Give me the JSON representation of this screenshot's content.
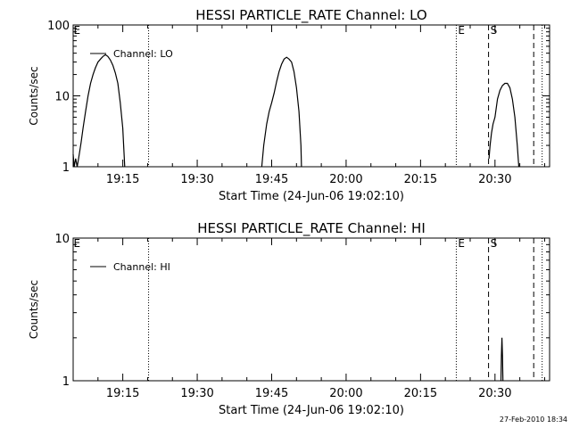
{
  "chart_data": [
    {
      "type": "line",
      "title": "HESSI PARTICLE_RATE Channel: LO",
      "xlabel": "Start Time (24-Jun-06 19:02:10)",
      "ylabel": "Counts/sec",
      "y_scale": "log",
      "ylim": [
        1,
        100
      ],
      "xlim_minutes": [
        5,
        44
      ],
      "x_ticks": [
        {
          "label": "19:15",
          "minute": 15
        },
        {
          "label": "19:30",
          "minute": 30
        },
        {
          "label": "19:45",
          "minute": 45
        },
        {
          "label": "20:00",
          "minute": 60
        },
        {
          "label": "20:15",
          "minute": 75
        },
        {
          "label": "20:30",
          "minute": 90
        }
      ],
      "y_ticks": [
        {
          "label": "1",
          "value": 1
        },
        {
          "label": "10",
          "value": 10
        },
        {
          "label": "100",
          "value": 100
        }
      ],
      "legend": {
        "label": "Channel: LO",
        "position": "top-left"
      },
      "markers": [
        {
          "text": "E",
          "minute": 5.1,
          "style": "none"
        },
        {
          "text": "",
          "minute": 20.2,
          "style": "dotted"
        },
        {
          "text": "E",
          "minute": 82.2,
          "style": "dotted"
        },
        {
          "text": "S",
          "minute": 88.7,
          "style": "dashed"
        },
        {
          "text": "",
          "minute": 97.8,
          "style": "dashed"
        },
        {
          "text": "",
          "minute": 99.5,
          "style": "dotted"
        }
      ],
      "series": [
        {
          "name": "Channel: LO",
          "segments": [
            [
              [
                5.0,
                1.5
              ],
              [
                5.2,
                1.0
              ],
              [
                5.5,
                1.3
              ],
              [
                5.8,
                1.0
              ],
              [
                6.0,
                1.2
              ],
              [
                6.3,
                1.6
              ],
              [
                6.6,
                2.2
              ],
              [
                7.0,
                3.5
              ],
              [
                7.5,
                6.0
              ],
              [
                8.0,
                10.0
              ],
              [
                8.5,
                15.0
              ],
              [
                9.0,
                20.0
              ],
              [
                9.5,
                25.0
              ],
              [
                10.0,
                30.0
              ],
              [
                10.5,
                33.0
              ],
              [
                11.0,
                36.0
              ],
              [
                11.5,
                38.0
              ],
              [
                12.0,
                36.0
              ],
              [
                12.5,
                32.0
              ],
              [
                13.0,
                27.0
              ],
              [
                13.5,
                21.0
              ],
              [
                14.0,
                15.0
              ],
              [
                14.5,
                8.0
              ],
              [
                15.0,
                3.5
              ],
              [
                15.4,
                1.0
              ]
            ],
            [
              [
                43.0,
                1.0
              ],
              [
                43.4,
                2.0
              ],
              [
                44.0,
                4.0
              ],
              [
                44.5,
                6.0
              ],
              [
                45.0,
                8.0
              ],
              [
                45.5,
                11.0
              ],
              [
                46.0,
                16.0
              ],
              [
                46.5,
                22.0
              ],
              [
                47.0,
                28.0
              ],
              [
                47.5,
                33.0
              ],
              [
                48.0,
                35.0
              ],
              [
                48.5,
                33.0
              ],
              [
                49.0,
                30.0
              ],
              [
                49.5,
                22.0
              ],
              [
                50.0,
                13.0
              ],
              [
                50.5,
                6.0
              ],
              [
                50.9,
                2.0
              ],
              [
                51.0,
                1.0
              ]
            ],
            [
              [
                88.8,
                1.3
              ],
              [
                89.0,
                2.0
              ],
              [
                89.3,
                3.0
              ],
              [
                89.6,
                4.0
              ],
              [
                90.0,
                5.0
              ],
              [
                90.5,
                9.0
              ],
              [
                91.0,
                12.0
              ],
              [
                91.5,
                14.0
              ],
              [
                92.0,
                15.0
              ],
              [
                92.5,
                15.0
              ],
              [
                93.0,
                13.0
              ],
              [
                93.5,
                9.0
              ],
              [
                94.0,
                5.0
              ],
              [
                94.5,
                2.0
              ],
              [
                94.8,
                1.0
              ]
            ]
          ]
        }
      ]
    },
    {
      "type": "line",
      "title": "HESSI PARTICLE_RATE Channel: HI",
      "xlabel": "Start Time (24-Jun-06 19:02:10)",
      "ylabel": "Counts/sec",
      "y_scale": "log",
      "ylim": [
        1,
        10
      ],
      "xlim_minutes": [
        5,
        44
      ],
      "x_ticks": [
        {
          "label": "19:15",
          "minute": 15
        },
        {
          "label": "19:30",
          "minute": 30
        },
        {
          "label": "19:45",
          "minute": 45
        },
        {
          "label": "20:00",
          "minute": 60
        },
        {
          "label": "20:15",
          "minute": 75
        },
        {
          "label": "20:30",
          "minute": 90
        }
      ],
      "y_ticks": [
        {
          "label": "1",
          "value": 1
        },
        {
          "label": "10",
          "value": 10
        }
      ],
      "legend": {
        "label": "Channel: HI",
        "position": "top-left"
      },
      "markers": [
        {
          "text": "E",
          "minute": 5.1,
          "style": "none"
        },
        {
          "text": "",
          "minute": 20.2,
          "style": "dotted"
        },
        {
          "text": "E",
          "minute": 82.2,
          "style": "dotted"
        },
        {
          "text": "S",
          "minute": 88.7,
          "style": "dashed"
        },
        {
          "text": "",
          "minute": 97.8,
          "style": "dashed"
        },
        {
          "text": "",
          "minute": 99.5,
          "style": "dotted"
        }
      ],
      "series": [
        {
          "name": "Channel: HI",
          "segments": [
            [
              [
                91.2,
                1.0
              ],
              [
                91.3,
                1.5
              ],
              [
                91.4,
                2.0
              ],
              [
                91.5,
                1.5
              ],
              [
                91.6,
                1.0
              ]
            ]
          ]
        }
      ]
    }
  ],
  "footer": {
    "timestamp": "27-Feb-2010 18:34"
  }
}
